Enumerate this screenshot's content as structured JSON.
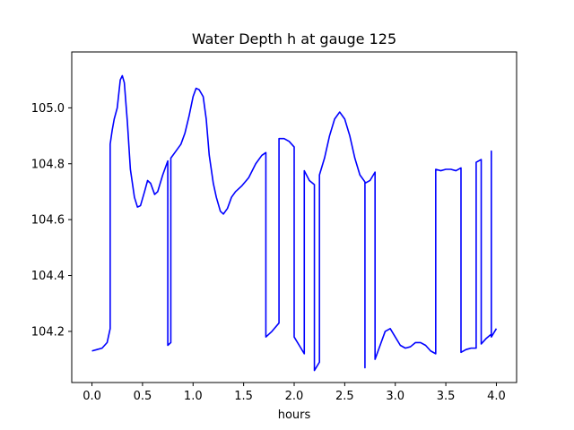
{
  "chart_data": {
    "type": "line",
    "title": "Water Depth h at gauge 125",
    "xlabel": "hours",
    "ylabel": "",
    "xlim": [
      -0.2,
      4.2
    ],
    "ylim": [
      104.017,
      105.2
    ],
    "xticks": [
      0.0,
      0.5,
      1.0,
      1.5,
      2.0,
      2.5,
      3.0,
      3.5,
      4.0
    ],
    "xtick_labels": [
      "0.0",
      "0.5",
      "1.0",
      "1.5",
      "2.0",
      "2.5",
      "3.0",
      "3.5",
      "4.0"
    ],
    "yticks": [
      104.2,
      104.4,
      104.6,
      104.8,
      105.0
    ],
    "ytick_labels": [
      "104.2",
      "104.4",
      "104.6",
      "104.8",
      "105.0"
    ],
    "grid": false,
    "legend": "none",
    "series": [
      {
        "color": "#0000ff",
        "points": [
          [
            0.0,
            104.13
          ],
          [
            0.05,
            104.135
          ],
          [
            0.1,
            104.14
          ],
          [
            0.15,
            104.16
          ],
          [
            0.18,
            104.21
          ],
          [
            0.18,
            104.87
          ],
          [
            0.2,
            104.92
          ],
          [
            0.22,
            104.96
          ],
          [
            0.25,
            105.0
          ],
          [
            0.28,
            105.1
          ],
          [
            0.3,
            105.115
          ],
          [
            0.32,
            105.09
          ],
          [
            0.35,
            104.95
          ],
          [
            0.38,
            104.78
          ],
          [
            0.42,
            104.68
          ],
          [
            0.45,
            104.645
          ],
          [
            0.48,
            104.65
          ],
          [
            0.52,
            104.7
          ],
          [
            0.55,
            104.74
          ],
          [
            0.58,
            104.73
          ],
          [
            0.62,
            104.69
          ],
          [
            0.65,
            104.7
          ],
          [
            0.7,
            104.76
          ],
          [
            0.75,
            104.81
          ],
          [
            0.75,
            104.15
          ],
          [
            0.78,
            104.16
          ],
          [
            0.78,
            104.82
          ],
          [
            0.82,
            104.84
          ],
          [
            0.88,
            104.87
          ],
          [
            0.92,
            104.91
          ],
          [
            0.96,
            104.97
          ],
          [
            1.0,
            105.04
          ],
          [
            1.03,
            105.07
          ],
          [
            1.06,
            105.065
          ],
          [
            1.1,
            105.04
          ],
          [
            1.13,
            104.96
          ],
          [
            1.16,
            104.83
          ],
          [
            1.2,
            104.73
          ],
          [
            1.23,
            104.68
          ],
          [
            1.27,
            104.63
          ],
          [
            1.3,
            104.62
          ],
          [
            1.34,
            104.64
          ],
          [
            1.38,
            104.68
          ],
          [
            1.42,
            104.7
          ],
          [
            1.48,
            104.72
          ],
          [
            1.55,
            104.75
          ],
          [
            1.62,
            104.8
          ],
          [
            1.68,
            104.83
          ],
          [
            1.72,
            104.84
          ],
          [
            1.72,
            104.18
          ],
          [
            1.78,
            104.2
          ],
          [
            1.85,
            104.23
          ],
          [
            1.85,
            104.89
          ],
          [
            1.9,
            104.89
          ],
          [
            1.95,
            104.88
          ],
          [
            2.0,
            104.86
          ],
          [
            2.0,
            104.18
          ],
          [
            2.05,
            104.15
          ],
          [
            2.1,
            104.12
          ],
          [
            2.1,
            104.775
          ],
          [
            2.15,
            104.74
          ],
          [
            2.2,
            104.725
          ],
          [
            2.2,
            104.06
          ],
          [
            2.25,
            104.09
          ],
          [
            2.25,
            104.76
          ],
          [
            2.3,
            104.82
          ],
          [
            2.35,
            104.9
          ],
          [
            2.4,
            104.96
          ],
          [
            2.45,
            104.985
          ],
          [
            2.5,
            104.96
          ],
          [
            2.55,
            104.9
          ],
          [
            2.6,
            104.82
          ],
          [
            2.65,
            104.76
          ],
          [
            2.7,
            104.735
          ],
          [
            2.7,
            104.07
          ],
          [
            2.7,
            104.73
          ],
          [
            2.75,
            104.74
          ],
          [
            2.8,
            104.77
          ],
          [
            2.8,
            104.1
          ],
          [
            2.85,
            104.15
          ],
          [
            2.9,
            104.2
          ],
          [
            2.95,
            104.21
          ],
          [
            3.0,
            104.18
          ],
          [
            3.05,
            104.15
          ],
          [
            3.1,
            104.14
          ],
          [
            3.15,
            104.145
          ],
          [
            3.2,
            104.16
          ],
          [
            3.25,
            104.16
          ],
          [
            3.3,
            104.15
          ],
          [
            3.35,
            104.13
          ],
          [
            3.4,
            104.12
          ],
          [
            3.4,
            104.78
          ],
          [
            3.45,
            104.775
          ],
          [
            3.5,
            104.78
          ],
          [
            3.55,
            104.78
          ],
          [
            3.6,
            104.775
          ],
          [
            3.65,
            104.785
          ],
          [
            3.65,
            104.125
          ],
          [
            3.7,
            104.135
          ],
          [
            3.75,
            104.14
          ],
          [
            3.8,
            104.14
          ],
          [
            3.8,
            104.805
          ],
          [
            3.85,
            104.815
          ],
          [
            3.85,
            104.155
          ],
          [
            3.9,
            104.175
          ],
          [
            3.95,
            104.19
          ],
          [
            3.95,
            104.845
          ],
          [
            3.95,
            104.18
          ],
          [
            4.0,
            104.21
          ]
        ]
      }
    ]
  }
}
